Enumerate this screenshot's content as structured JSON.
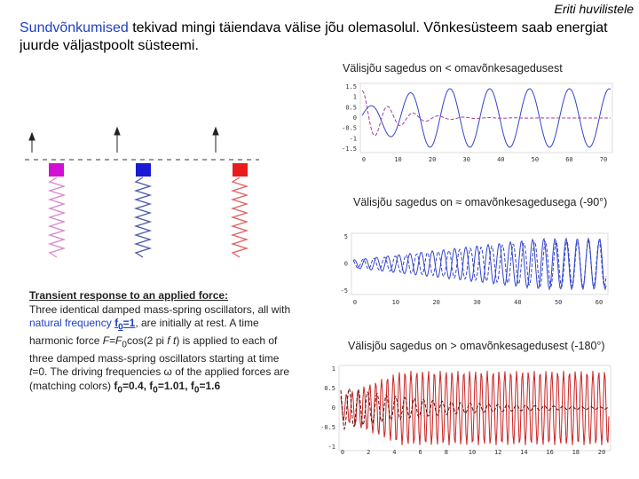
{
  "header": {
    "corner_note": "Eriti huvilistele",
    "title_lead": "Sundvõnkumised",
    "title_rest": " tekivad mingi täiendava välise jõu olemasolul. Võnkesüsteem saab energiat juurde väljastpoolt süsteemi."
  },
  "plots": [
    {
      "caption": "Välisjõu sagedus on < omavõnkesagedusest",
      "yticks": [
        "1.5",
        "1",
        "0.5",
        "0",
        "-0.5",
        "-1",
        "-1.5"
      ],
      "xticks": [
        "0",
        "10",
        "20",
        "30",
        "40",
        "50",
        "60",
        "70"
      ]
    },
    {
      "caption": "Välisjõu sagedus on ≈ omavõnkesagedusega (-90°)",
      "yticks": [
        "5",
        "0",
        "-5"
      ],
      "xticks": [
        "0",
        "10",
        "20",
        "30",
        "40",
        "50",
        "60"
      ]
    },
    {
      "caption": "Välisjõu sagedus on > omavõnkesagedusest (-180°)",
      "yticks": [
        "1",
        "0.5",
        "0",
        "-0.5",
        "-1"
      ],
      "xticks": [
        "0",
        "2",
        "4",
        "6",
        "8",
        "10",
        "12",
        "14",
        "16",
        "18",
        "20"
      ]
    }
  ],
  "description": {
    "segments": [
      "Transient response to an applied force:",
      "Three identical damped mass-spring oscillators, all with ",
      "natural frequency",
      " ",
      "f",
      "0",
      "=1",
      ", are initially at rest. A time harmonic force ",
      "F=F",
      "0",
      "cos(2 pi ",
      "f t",
      ") is applied to each  of three damped mass-spring oscillators starting at time ",
      "t",
      "=0. The driving frequencies ω of the applied forces are (matching colors) ",
      "f",
      "0",
      "=0.4, ",
      "f",
      "0",
      "=1.01, ",
      "f",
      "0",
      "=1.6"
    ]
  }
}
